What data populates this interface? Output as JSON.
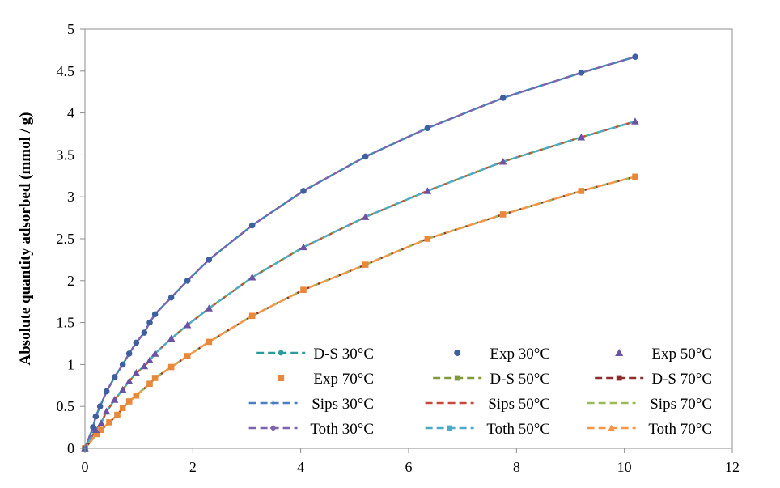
{
  "chart_data": {
    "type": "scatter",
    "xlabel": "",
    "ylabel": "Absolute quantity adsorbed  (mmol / g)",
    "xlim": [
      0,
      12
    ],
    "ylim": [
      0,
      5
    ],
    "x_ticks": [
      "0",
      "2",
      "4",
      "6",
      "8",
      "10",
      "12"
    ],
    "y_ticks": [
      "0",
      "0.5",
      "1",
      "1.5",
      "2",
      "2.5",
      "3",
      "3.5",
      "4",
      "4.5",
      "5"
    ],
    "grid": false,
    "legend_position": "bottom-right",
    "series": [
      {
        "name": "D-S 30°C",
        "kind": "model",
        "marker": "circle",
        "color": "#2a9a9a",
        "temp": "30"
      },
      {
        "name": "Exp 30°C",
        "kind": "exp",
        "marker": "circle",
        "color": "#3f5f9f",
        "temp": "30"
      },
      {
        "name": "Exp 50°C",
        "kind": "exp",
        "marker": "triangle",
        "color": "#6b52a3",
        "temp": "50"
      },
      {
        "name": "Exp 70°C",
        "kind": "exp",
        "marker": "square",
        "color": "#e8883a",
        "temp": "70"
      },
      {
        "name": "D-S 50°C",
        "kind": "model",
        "marker": "square",
        "color": "#7f9a3a",
        "temp": "50"
      },
      {
        "name": "D-S 70°C",
        "kind": "model",
        "marker": "square",
        "color": "#8b2e2e",
        "temp": "70"
      },
      {
        "name": "Sips 30°C",
        "kind": "model",
        "marker": "plus",
        "color": "#4a7fc4",
        "temp": "30"
      },
      {
        "name": "Sips 50°C",
        "kind": "model",
        "marker": "none",
        "color": "#c9483b",
        "temp": "50"
      },
      {
        "name": "Sips 70°C",
        "kind": "model",
        "marker": "none",
        "color": "#9bbb59",
        "temp": "70"
      },
      {
        "name": "Toth 30°C",
        "kind": "model",
        "marker": "diamond",
        "color": "#7e63ad",
        "temp": "30"
      },
      {
        "name": "Toth 50°C",
        "kind": "model",
        "marker": "square",
        "color": "#4bacc6",
        "temp": "50"
      },
      {
        "name": "Toth 70°C",
        "kind": "model",
        "marker": "triangle",
        "color": "#f79646",
        "temp": "70"
      }
    ],
    "experimental": {
      "30": {
        "x": [
          0,
          0.15,
          0.2,
          0.28,
          0.4,
          0.55,
          0.7,
          0.82,
          0.95,
          1.1,
          1.2,
          1.3,
          1.6,
          1.9,
          2.3,
          3.1,
          4.05,
          5.2,
          6.35,
          7.75,
          9.2,
          10.2
        ],
        "y": [
          0,
          0.25,
          0.38,
          0.5,
          0.68,
          0.85,
          1.0,
          1.13,
          1.26,
          1.38,
          1.5,
          1.6,
          1.8,
          2.0,
          2.25,
          2.66,
          3.07,
          3.48,
          3.82,
          4.18,
          4.48,
          4.67
        ]
      },
      "50": {
        "x": [
          0,
          0.2,
          0.3,
          0.4,
          0.55,
          0.7,
          0.82,
          0.95,
          1.1,
          1.2,
          1.3,
          1.6,
          1.9,
          2.3,
          3.1,
          4.05,
          5.2,
          6.35,
          7.75,
          9.2,
          10.2
        ],
        "y": [
          0,
          0.22,
          0.3,
          0.44,
          0.58,
          0.7,
          0.8,
          0.9,
          0.98,
          1.05,
          1.13,
          1.31,
          1.47,
          1.67,
          2.04,
          2.4,
          2.76,
          3.07,
          3.42,
          3.71,
          3.9
        ]
      },
      "70": {
        "x": [
          0,
          0.22,
          0.3,
          0.45,
          0.6,
          0.7,
          0.82,
          0.95,
          1.2,
          1.3,
          1.6,
          1.9,
          2.3,
          3.1,
          4.05,
          5.2,
          6.35,
          7.75,
          9.2,
          10.2
        ],
        "y": [
          0,
          0.17,
          0.22,
          0.31,
          0.4,
          0.48,
          0.56,
          0.63,
          0.77,
          0.84,
          0.97,
          1.1,
          1.27,
          1.58,
          1.89,
          2.19,
          2.5,
          2.79,
          3.07,
          3.24
        ]
      }
    }
  }
}
